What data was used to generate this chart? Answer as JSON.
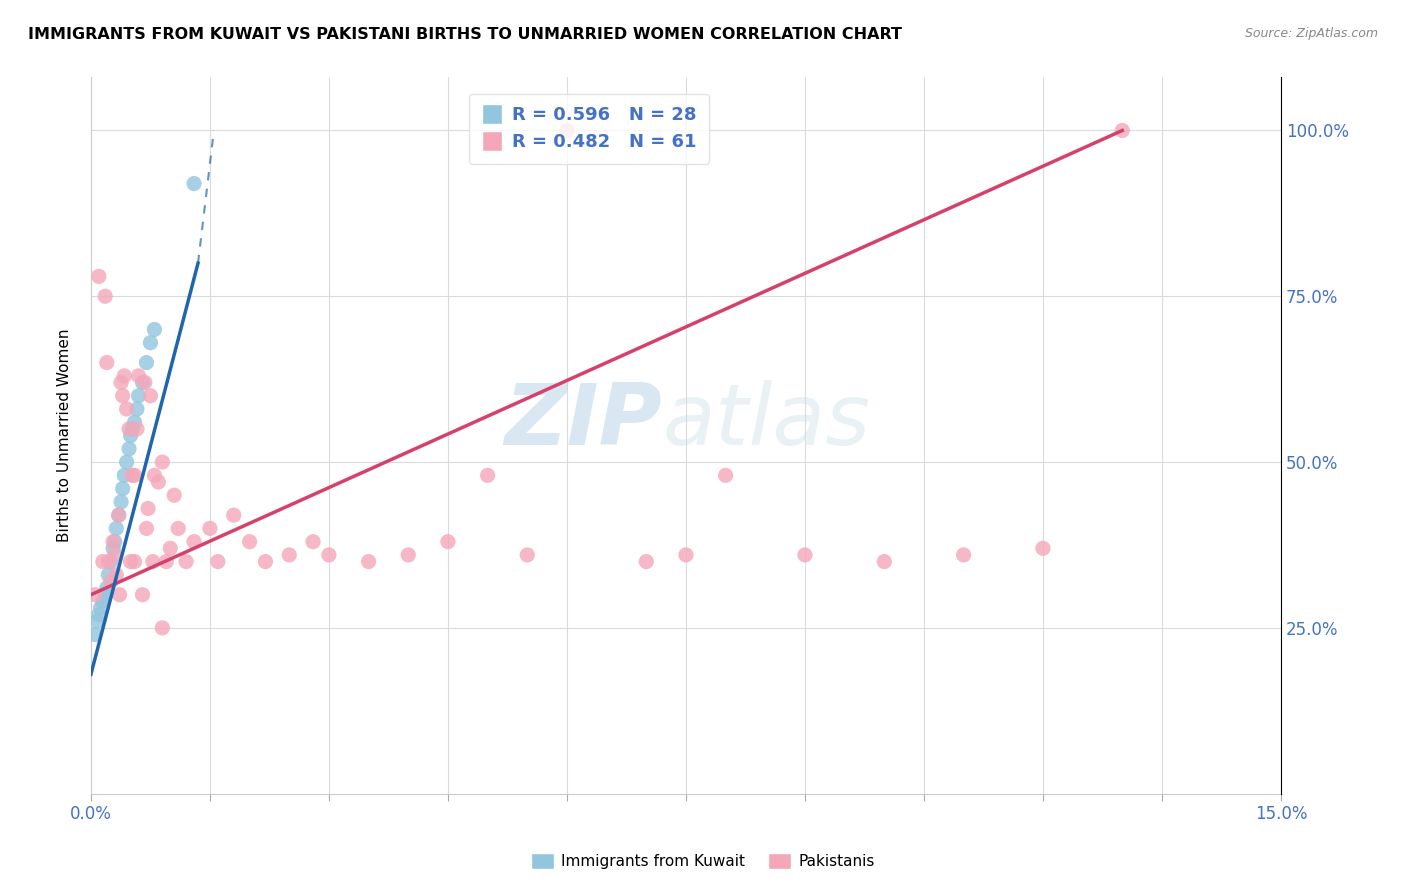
{
  "title": "IMMIGRANTS FROM KUWAIT VS PAKISTANI BIRTHS TO UNMARRIED WOMEN CORRELATION CHART",
  "source": "Source: ZipAtlas.com",
  "ylabel": "Births to Unmarried Women",
  "x_min": 0.0,
  "x_max": 15.0,
  "y_min": 0.0,
  "y_max": 108.0,
  "y_ticks": [
    25.0,
    50.0,
    75.0,
    100.0
  ],
  "blue_R": 0.596,
  "blue_N": 28,
  "pink_R": 0.482,
  "pink_N": 61,
  "blue_color": "#92c5de",
  "pink_color": "#f4a7b9",
  "blue_trend_color": "#2166ac",
  "pink_trend_color": "#d6416b",
  "watermark_zip": "ZIP",
  "watermark_atlas": "atlas",
  "blue_scatter_x": [
    0.05,
    0.08,
    0.1,
    0.12,
    0.15,
    0.18,
    0.2,
    0.22,
    0.25,
    0.28,
    0.3,
    0.32,
    0.35,
    0.38,
    0.4,
    0.42,
    0.45,
    0.48,
    0.5,
    0.52,
    0.55,
    0.58,
    0.6,
    0.65,
    0.7,
    0.75,
    0.8,
    1.3
  ],
  "blue_scatter_y": [
    24.0,
    26.0,
    27.0,
    28.0,
    29.0,
    30.0,
    31.0,
    33.0,
    35.0,
    37.0,
    38.0,
    40.0,
    42.0,
    44.0,
    46.0,
    48.0,
    50.0,
    52.0,
    54.0,
    55.0,
    56.0,
    58.0,
    60.0,
    62.0,
    65.0,
    68.0,
    70.0,
    92.0
  ],
  "pink_scatter_x": [
    0.05,
    0.1,
    0.15,
    0.18,
    0.2,
    0.22,
    0.25,
    0.28,
    0.3,
    0.35,
    0.38,
    0.4,
    0.42,
    0.45,
    0.48,
    0.5,
    0.52,
    0.55,
    0.58,
    0.6,
    0.65,
    0.68,
    0.7,
    0.72,
    0.75,
    0.78,
    0.8,
    0.85,
    0.9,
    0.95,
    1.0,
    1.05,
    1.1,
    1.2,
    1.3,
    1.5,
    1.6,
    1.8,
    2.0,
    2.2,
    2.5,
    2.8,
    3.0,
    3.5,
    4.0,
    4.5,
    5.0,
    5.5,
    6.0,
    7.0,
    7.5,
    8.0,
    9.0,
    10.0,
    11.0,
    12.0,
    13.0,
    0.32,
    0.36,
    0.55,
    0.9
  ],
  "pink_scatter_y": [
    30.0,
    78.0,
    35.0,
    75.0,
    65.0,
    35.0,
    32.0,
    38.0,
    36.0,
    42.0,
    62.0,
    60.0,
    63.0,
    58.0,
    55.0,
    35.0,
    48.0,
    35.0,
    55.0,
    63.0,
    30.0,
    62.0,
    40.0,
    43.0,
    60.0,
    35.0,
    48.0,
    47.0,
    50.0,
    35.0,
    37.0,
    45.0,
    40.0,
    35.0,
    38.0,
    40.0,
    35.0,
    42.0,
    38.0,
    35.0,
    36.0,
    38.0,
    36.0,
    35.0,
    36.0,
    38.0,
    48.0,
    36.0,
    100.0,
    35.0,
    36.0,
    48.0,
    36.0,
    35.0,
    36.0,
    37.0,
    100.0,
    33.0,
    30.0,
    48.0,
    25.0
  ],
  "blue_trend_x0": 0.0,
  "blue_trend_y0": 18.0,
  "blue_trend_x1": 1.35,
  "blue_trend_y1": 80.0,
  "blue_dash_x0": 1.35,
  "blue_dash_y0": 80.0,
  "blue_dash_x1": 1.55,
  "blue_dash_y1": 100.0,
  "pink_trend_x0": 0.0,
  "pink_trend_y0": 30.0,
  "pink_trend_x1": 13.0,
  "pink_trend_y1": 100.0
}
